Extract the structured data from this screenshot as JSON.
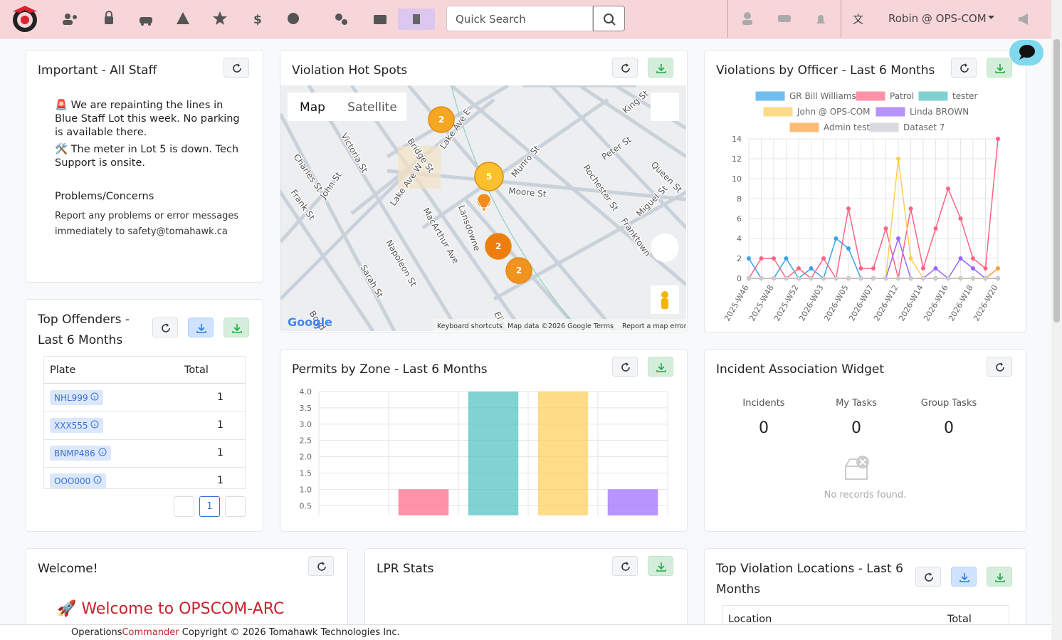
{
  "nav": {
    "search_placeholder": "Quick Search",
    "user": "Robin @ OPS-COM"
  },
  "important": {
    "title": "Important - All Staff",
    "notes": [
      "🚨 We are repainting the lines in Blue Staff Lot this week. No parking is available there.",
      "🛠️ The meter in Lot 5 is down. Tech Support is onsite."
    ],
    "problems_title": "Problems/Concerns",
    "problems_text": "Report any problems or error messages immediately to safety@tomahawk.ca"
  },
  "hotspots": {
    "title": "Violation Hot Spots",
    "map_tab": "Map",
    "satellite_tab": "Satellite",
    "clusters": [
      2,
      5,
      2,
      2
    ],
    "streets": [
      "Charles St",
      "Frank St",
      "John St",
      "Victoria St",
      "Bridge St",
      "Lake Ave E",
      "Lake Ave W",
      "MacArthur Ave",
      "Lansdowne",
      "Napoleon St",
      "Sarah St",
      "Munro St",
      "Moore St",
      "Rochester St",
      "Peter St",
      "Queen St",
      "Franktown",
      "Miguel St",
      "King St",
      "Boyd St",
      "Elizab"
    ],
    "logo": "Google",
    "attribution": [
      "Keyboard shortcuts",
      "Map data ©2026 Google",
      "Terms",
      "Report a map error"
    ]
  },
  "offenders": {
    "title": "Top Offenders - Last 6 Months",
    "columns": [
      "Plate",
      "Total"
    ],
    "rows": [
      {
        "plate": "NHL999",
        "total": 1
      },
      {
        "plate": "XXX555",
        "total": 1
      },
      {
        "plate": "BNMP486",
        "total": 1
      },
      {
        "plate": "OOO000",
        "total": 1
      }
    ],
    "page": 1
  },
  "incidents": {
    "title": "Incident Association Widget",
    "stats": [
      {
        "label": "Incidents",
        "value": 0
      },
      {
        "label": "My Tasks",
        "value": 0
      },
      {
        "label": "Group Tasks",
        "value": 0
      }
    ],
    "empty": "No records found."
  },
  "welcome": {
    "title": "Welcome!",
    "heading": "🚀 Welcome to OPSCOM-ARC"
  },
  "lpr": {
    "title": "LPR Stats"
  },
  "locations": {
    "title": "Top Violation Locations - Last 6 Months",
    "columns": [
      "Location",
      "Total"
    ]
  },
  "footer": {
    "brand_a": "Operations",
    "brand_b": "Commander",
    "text": "Copyright © 2026 Tomahawk Technologies Inc."
  },
  "chart_data": [
    {
      "type": "line",
      "title": "Violations by Officer - Last 6 Months",
      "categories": [
        "2025-W46",
        null,
        "2025-W48",
        null,
        "2025-W52",
        null,
        "2026-W03",
        null,
        "2026-W05",
        null,
        "2026-W07",
        null,
        "2026-W12",
        null,
        "2026-W14",
        null,
        "2026-W16",
        null,
        "2026-W18",
        null,
        "2026-W20"
      ],
      "ylim": [
        0,
        14
      ],
      "yticks": [
        0,
        2,
        4,
        6,
        8,
        10,
        12,
        14
      ],
      "grid": true,
      "series": [
        {
          "name": "GR Bill Williams",
          "color": "#36a2eb",
          "values": [
            2,
            0,
            0,
            2,
            0,
            1,
            0,
            4,
            3,
            0,
            0,
            0,
            0,
            0,
            0,
            0,
            0,
            0,
            0,
            0,
            0
          ]
        },
        {
          "name": "Patrol",
          "color": "#ff6384",
          "values": [
            0,
            2,
            2,
            0,
            1,
            0,
            2,
            0,
            7,
            1,
            1,
            5,
            0,
            7,
            1,
            5,
            9,
            6,
            2,
            1,
            14
          ]
        },
        {
          "name": "tester",
          "color": "#4bc0c0",
          "values": [
            0,
            0,
            0,
            0,
            0,
            0,
            0,
            0,
            0,
            0,
            0,
            0,
            0,
            0,
            0,
            0,
            0,
            0,
            0,
            0,
            0
          ]
        },
        {
          "name": "John @ OPS-COM",
          "color": "#ffcd56",
          "values": [
            0,
            0,
            0,
            0,
            0,
            0,
            0,
            0,
            0,
            0,
            0,
            0,
            12,
            2,
            0,
            0,
            0,
            0,
            0,
            0,
            1
          ]
        },
        {
          "name": "Linda BROWN",
          "color": "#9966ff",
          "values": [
            0,
            0,
            0,
            0,
            0,
            0,
            0,
            0,
            0,
            0,
            0,
            0,
            4,
            0,
            0,
            1,
            0,
            2,
            1,
            0,
            0
          ]
        },
        {
          "name": "Admin test",
          "color": "#ff9f40",
          "values": [
            0,
            0,
            0,
            0,
            0,
            0,
            0,
            0,
            0,
            0,
            0,
            0,
            0,
            0,
            0,
            0,
            0,
            0,
            0,
            0,
            1
          ]
        },
        {
          "name": "Dataset 7",
          "color": "#c9cbcf",
          "values": [
            0,
            0,
            0,
            0,
            0,
            0,
            0,
            0,
            0,
            0,
            0,
            0,
            0,
            0,
            0,
            0,
            0,
            0,
            0,
            0,
            0
          ]
        }
      ]
    },
    {
      "type": "bar",
      "title": "Permits by Zone - Last 6 Months",
      "categories": [
        null,
        null,
        null,
        null,
        null
      ],
      "values": [
        0,
        1,
        4,
        4,
        1
      ],
      "colors": [
        "#36a2eb",
        "#ff6384",
        "#4bc0c0",
        "#ffcd56",
        "#9966ff"
      ],
      "ylim": [
        0.2,
        4.0
      ],
      "yticks": [
        {
          "value": 0.5,
          "label": "0.5"
        },
        {
          "value": 1,
          "label": "1.0"
        },
        {
          "value": 1.5,
          "label": "1.5"
        },
        {
          "value": 2,
          "label": "2.0"
        },
        {
          "value": 2.5,
          "label": "2.5"
        },
        {
          "value": 3,
          "label": "3.0"
        },
        {
          "value": 3.5,
          "label": "3.5"
        },
        {
          "value": 4,
          "label": "4.0"
        }
      ],
      "grid": true
    }
  ]
}
